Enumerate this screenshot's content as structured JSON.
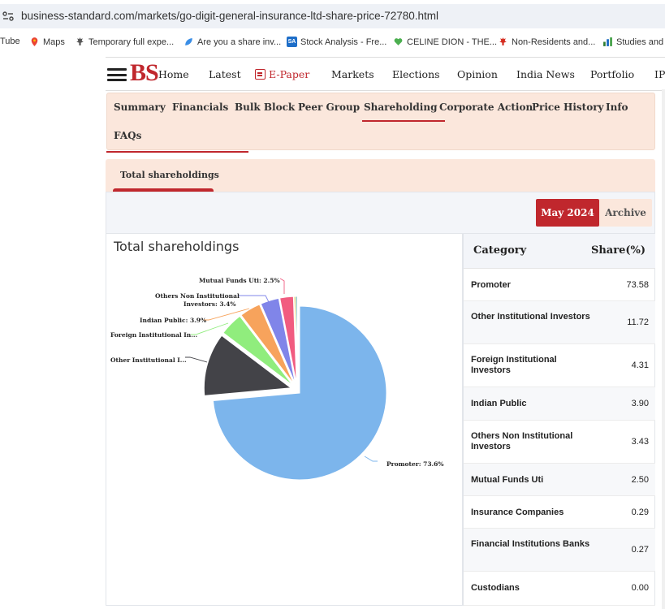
{
  "browser": {
    "url": "business-standard.com/markets/go-digit-general-insurance-ltd-share-price-72780.html",
    "bookmarks": [
      {
        "label": "Tube",
        "icon": "youtube-icon"
      },
      {
        "label": "Maps",
        "icon": "maps-pin-icon",
        "color": "#34a853"
      },
      {
        "label": "Temporary full expe...",
        "icon": "maple-leaf-icon"
      },
      {
        "label": "Are you a share inv...",
        "icon": "bookmark-leaf-icon"
      },
      {
        "label": "Stock Analysis - Fre...",
        "icon": "sa-logo-icon"
      },
      {
        "label": "CELINE DION - THE...",
        "icon": "heart-icon"
      },
      {
        "label": "Non-Residents and...",
        "icon": "canada-leaf-icon"
      },
      {
        "label": "Studies and",
        "icon": "chart-icon"
      }
    ]
  },
  "nav": {
    "logo": "BS",
    "items": [
      "Home",
      "Latest",
      "E-Paper",
      "Markets",
      "Elections",
      "Opinion",
      "India News",
      "Portfolio",
      "IP"
    ]
  },
  "subtabs": [
    "Summary",
    "Financials",
    "Bulk Block",
    "Peer Group",
    "Shareholding",
    "Corporate Action",
    "Price History",
    "Info",
    "FAQs"
  ],
  "section": {
    "header": "Total shareholdings",
    "period_active": "May 2024",
    "period_archive": "Archive",
    "chart_title": "Total shareholdings"
  },
  "pie_labels": {
    "promoter": "Promoter: 73.6%",
    "other_inst": "Other Institutional I...",
    "foreign_inst": "Foreign Institutional In...",
    "indian_public": "Indian Public: 3.9%",
    "others_non_inst_1": "Others Non Institutional",
    "others_non_inst_2": "Investors: 3.4%",
    "mutual_funds": "Mutual Funds Uti: 2.5%"
  },
  "chart_data": {
    "type": "pie",
    "title": "Total shareholdings",
    "categories": [
      "Promoter",
      "Other Institutional Investors",
      "Foreign Institutional Investors",
      "Indian Public",
      "Others Non Institutional Investors",
      "Mutual Funds Uti",
      "Insurance Companies",
      "Financial Institutions Banks",
      "Custodians"
    ],
    "values": [
      73.58,
      11.72,
      4.31,
      3.9,
      3.43,
      2.5,
      0.29,
      0.27,
      0.0
    ],
    "colors": [
      "#7cb5ec",
      "#434348",
      "#90ed7d",
      "#f7a35c",
      "#8085e9",
      "#f15c80",
      "#e4d354",
      "#2b908f",
      "#f45b5b"
    ]
  },
  "table": {
    "col_category": "Category",
    "col_share": "Share(%)",
    "rows": [
      {
        "category": "Promoter",
        "share": "73.58"
      },
      {
        "category": "Other Institutional Investors",
        "share": "11.72"
      },
      {
        "category": "Foreign Institutional Investors",
        "share": "4.31"
      },
      {
        "category": "Indian Public",
        "share": "3.90"
      },
      {
        "category": "Others Non Institutional Investors",
        "share": "3.43"
      },
      {
        "category": "Mutual Funds Uti",
        "share": "2.50"
      },
      {
        "category": "Insurance Companies",
        "share": "0.29"
      },
      {
        "category": "Financial Institutions Banks",
        "share": "0.27"
      },
      {
        "category": "Custodians",
        "share": "0.00"
      }
    ]
  }
}
